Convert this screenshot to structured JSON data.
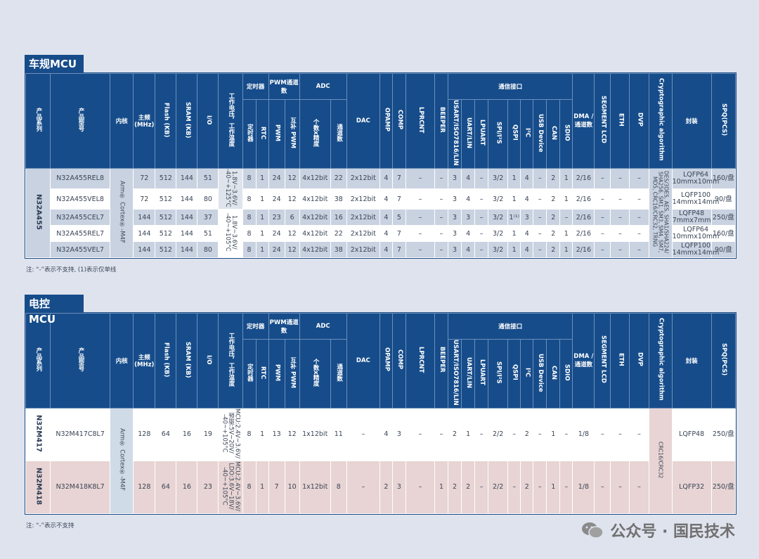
{
  "sections": [
    {
      "title": "车规MCU",
      "note": "注: “-”表示不支持, (1)表示仅单线",
      "headers": [
        {
          "label": "产品系列"
        },
        {
          "label": "产品型号"
        },
        {
          "label": "内核"
        },
        {
          "label": "主频(MHz)"
        },
        {
          "label": "Flash (KB)"
        },
        {
          "label": "SRAM (KB)"
        },
        {
          "label": "I/O"
        },
        {
          "label": "工作电压，工作温度"
        },
        {
          "label": "定时器",
          "sub": [
            "定时器",
            "RTC"
          ]
        },
        {
          "label": "PWM通道数",
          "sub": [
            "PWM",
            "互补 PWM"
          ]
        },
        {
          "label": "ADC",
          "sub": [
            "个数x精度",
            "通道数"
          ]
        },
        {
          "label": "DAC"
        },
        {
          "label": "OPAMP"
        },
        {
          "label": "COMP"
        },
        {
          "label": "LPRCNT"
        },
        {
          "label": "BEEPER"
        },
        {
          "label": "通信接口",
          "sub": [
            "USART/ISO7816/LIN",
            "UART/LIN",
            "LPUART",
            "SPI/I²S",
            "QSPI",
            "I²C",
            "USB Device",
            "CAN",
            "SDIO"
          ]
        },
        {
          "label": "DMA / 通道数"
        },
        {
          "label": "SEGMENT LCD"
        },
        {
          "label": "ETH"
        },
        {
          "label": "DVP"
        },
        {
          "label": "Cryptographic algorithm"
        },
        {
          "label": "封装"
        },
        {
          "label": "SPQ(PCS)"
        }
      ],
      "rows": [
        [
          {
            "v": "N32A455",
            "rs": 5
          },
          "N32A455REL8",
          {
            "v": "Arm® Cortex®-M4F",
            "rs": 5
          },
          "72",
          "512",
          "144",
          "51",
          {
            "v": "1.8V~3.6V/\n-40~+125°C",
            "rs": 2
          },
          "8",
          "1",
          "24",
          "12",
          "4x12bit",
          "22",
          "2x12bit",
          "4",
          "7",
          "–",
          "–",
          "3",
          "4",
          "–",
          "3/2",
          "1",
          "4",
          "–",
          "2",
          "1",
          "2/16",
          "–",
          "–",
          "–",
          {
            "v": "DES/3DES, AES, SHA1/SHA224/\nSHA256, SM1, SM3, SM4, SM7,\nMD5, CRC16/CRC32, TRNG",
            "rs": 5
          },
          "LQFP64\n10mmx10mm",
          "160/盘"
        ],
        [
          null,
          "N32A455VEL8",
          null,
          "72",
          "512",
          "144",
          "80",
          null,
          "8",
          "1",
          "24",
          "12",
          "4x12bit",
          "38",
          "2x12bit",
          "4",
          "7",
          "–",
          "–",
          "3",
          "4",
          "–",
          "3/2",
          "1",
          "4",
          "–",
          "2",
          "1",
          "2/16",
          "–",
          "–",
          "–",
          null,
          "LQFP100\n14mmx14mm",
          "90/盘"
        ],
        [
          null,
          "N32A455CEL7",
          null,
          "144",
          "512",
          "144",
          "37",
          {
            "v": "1.8V~3.6V/\n-40~+105°C",
            "rs": 3
          },
          "8",
          "1",
          "23",
          "6",
          "4x12bit",
          "16",
          "2x12bit",
          "4",
          "5",
          "–",
          "–",
          "3",
          "3",
          "–",
          "3/2",
          "1⁽¹⁾",
          "3",
          "–",
          "2",
          "–",
          "2/16",
          "–",
          "–",
          "–",
          null,
          "LQFP48\n7mmx7mm",
          "250/盘"
        ],
        [
          null,
          "N32A455REL7",
          null,
          "144",
          "512",
          "144",
          "51",
          null,
          "8",
          "1",
          "24",
          "12",
          "4x12bit",
          "22",
          "2x12bit",
          "4",
          "7",
          "–",
          "–",
          "3",
          "4",
          "–",
          "3/2",
          "1",
          "4",
          "–",
          "2",
          "1",
          "2/16",
          "–",
          "–",
          "–",
          null,
          "LQFP64\n10mmx10mm",
          "160/盘"
        ],
        [
          null,
          "N32A455VEL7",
          null,
          "144",
          "512",
          "144",
          "80",
          null,
          "8",
          "1",
          "24",
          "12",
          "4x12bit",
          "38",
          "2x12bit",
          "4",
          "7",
          "–",
          "–",
          "3",
          "4",
          "–",
          "3/2",
          "1",
          "4",
          "–",
          "2",
          "1",
          "2/16",
          "–",
          "–",
          "–",
          null,
          "LQFP100\n14mmx14mm",
          "90/盘"
        ]
      ]
    },
    {
      "title": "电控 MCU",
      "note": "注: “-”表示不支持",
      "headers": [
        {
          "label": "产品系列"
        },
        {
          "label": "产品型号"
        },
        {
          "label": "内核"
        },
        {
          "label": "主频(MHz)"
        },
        {
          "label": "Flash (KB)"
        },
        {
          "label": "SRAM (KB)"
        },
        {
          "label": "I/O"
        },
        {
          "label": "工作电压，工作温度"
        },
        {
          "label": "定时器",
          "sub": [
            "定时器",
            "RTC"
          ]
        },
        {
          "label": "PWM通道数",
          "sub": [
            "PWM",
            "互补 PWM"
          ]
        },
        {
          "label": "ADC",
          "sub": [
            "个数x精度",
            "通道数"
          ]
        },
        {
          "label": "DAC"
        },
        {
          "label": "OPAMP"
        },
        {
          "label": "COMP"
        },
        {
          "label": "LPRCNT"
        },
        {
          "label": "BEEPER"
        },
        {
          "label": "通信接口",
          "sub": [
            "USART/ISO7816/LIN",
            "UART/LIN",
            "LPUART",
            "SPI/I²S",
            "QSPI",
            "I²C",
            "USB Device",
            "CAN",
            "SDIO"
          ]
        },
        {
          "label": "DMA / 通道数"
        },
        {
          "label": "SEGMENT LCD"
        },
        {
          "label": "ETH"
        },
        {
          "label": "DVP"
        },
        {
          "label": "Cryptographic algorithm"
        },
        {
          "label": "封装"
        },
        {
          "label": "SPQ(PCS)"
        }
      ],
      "rows": [
        [
          "N32M417",
          "N32M417C8L7",
          {
            "v": "Arm® Cortex®-M4F",
            "rs": 2
          },
          "128",
          "64",
          "16",
          "19",
          "MCU:2.4V~3.6V/\n预驱:5V~20V/\n-40~+105°C",
          "8",
          "1",
          "13",
          "12",
          "1x12bit",
          "11",
          "–",
          "4",
          "3",
          "–",
          "–",
          "2",
          "1",
          "–",
          "2/2",
          "–",
          "2",
          "–",
          "1",
          "–",
          "1/8",
          "–",
          "–",
          "–",
          {
            "v": "CRC16/CRC32",
            "rs": 2
          },
          "LQFP48",
          "250/盘"
        ],
        [
          "N32M418",
          "N32M418K8L7",
          null,
          "128",
          "64",
          "16",
          "23",
          "MCU:2.4V~3.6V/\nLDO:3.6V~18V/\n-40~+105°C",
          "8",
          "1",
          "7",
          "10",
          "1x12bit",
          "8",
          "–",
          "2",
          "3",
          "–",
          "1",
          "2",
          "2",
          "–",
          "2/2",
          "–",
          "2",
          "–",
          "1",
          "–",
          "1/8",
          "–",
          "–",
          "–",
          null,
          "LQFP32",
          "250/盘"
        ]
      ]
    }
  ],
  "watermark": "公众号 · 国民技术",
  "colors": {
    "header": "#164c8a",
    "shade_blue": "#c9d2e0",
    "shade_pink": "#e8d4d4",
    "background": "#dfe3ee"
  }
}
